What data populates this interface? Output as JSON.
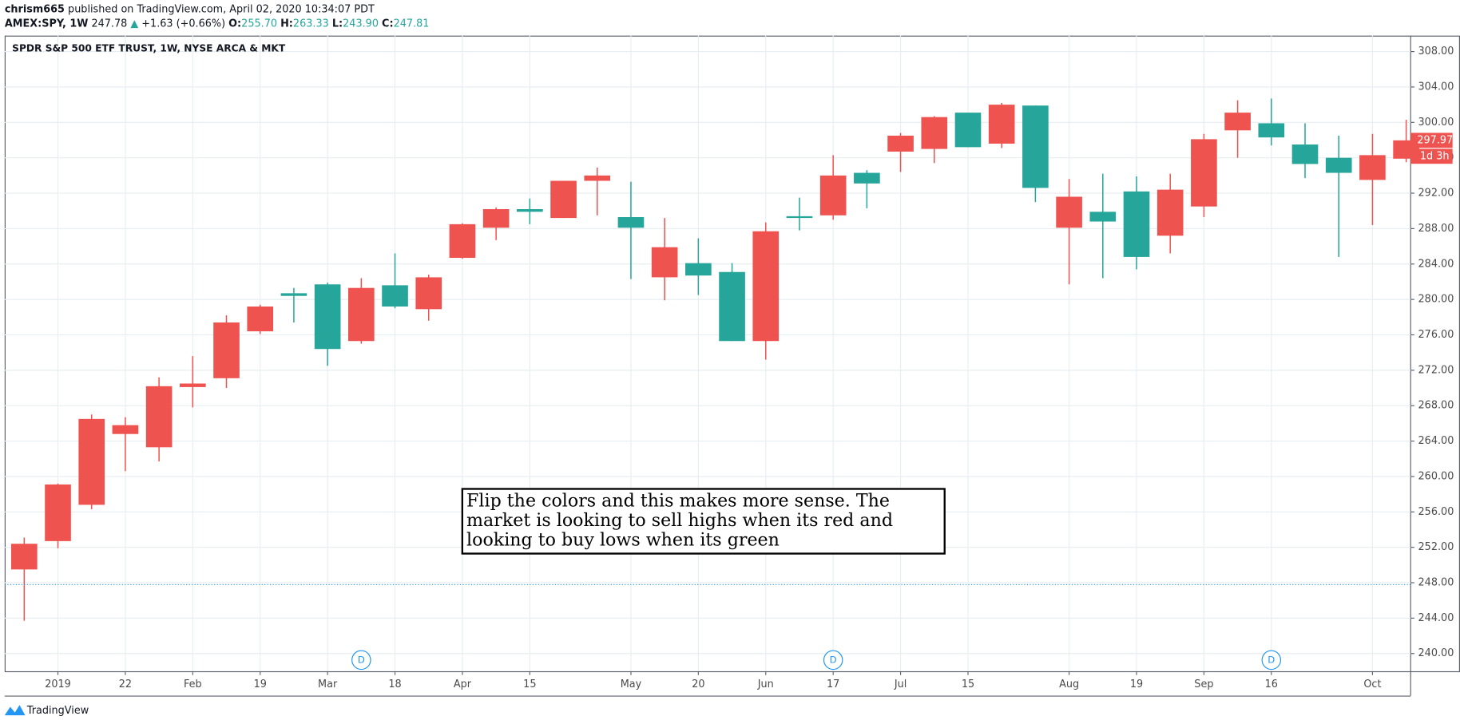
{
  "header": {
    "author": "chrism665",
    "published": "published on TradingView.com, April 02, 2020 10:34:07 PDT",
    "symbol": "AMEX:SPY, 1W",
    "price": "247.78",
    "arrow": "▲",
    "change": "+1.63 (+0.66%)",
    "ohlc": [
      {
        "label": "O:",
        "value": "255.70"
      },
      {
        "label": "H:",
        "value": "263.33"
      },
      {
        "label": "L:",
        "value": "243.90"
      },
      {
        "label": "C:",
        "value": "247.81"
      }
    ]
  },
  "chart_data": {
    "type": "candlestick",
    "title": "SPDR S&P 500 ETF TRUST, 1W, NYSE ARCA & MKT",
    "categories": [
      null,
      "2019",
      null,
      "22",
      null,
      "Feb",
      null,
      "19",
      null,
      "Mar",
      null,
      "18",
      null,
      "Apr",
      null,
      "15",
      null,
      null,
      "May",
      null,
      "20",
      null,
      "Jun",
      null,
      "17",
      null,
      "Jul",
      null,
      "15",
      null,
      null,
      "Aug",
      null,
      "19",
      null,
      "Sep",
      null,
      "16",
      null,
      null,
      "Oct",
      null
    ],
    "open": [
      249.5,
      252.7,
      256.8,
      264.8,
      263.3,
      270.1,
      271.1,
      276.4,
      280.7,
      281.7,
      275.3,
      281.6,
      278.9,
      284.7,
      288.1,
      290.2,
      289.2,
      293.4,
      289.3,
      282.5,
      284.1,
      283.1,
      275.3,
      289.4,
      289.5,
      294.3,
      296.7,
      297.0,
      301.1,
      297.6,
      301.9,
      288.1,
      289.9,
      292.2,
      287.2,
      290.5,
      299.1,
      299.9,
      297.5,
      296.0,
      293.5,
      295.9
    ],
    "high": [
      253.1,
      259.2,
      267.0,
      266.7,
      271.2,
      273.6,
      278.2,
      279.4,
      281.3,
      281.9,
      282.4,
      285.2,
      282.8,
      288.6,
      290.4,
      291.4,
      293.4,
      294.9,
      293.3,
      289.2,
      286.9,
      284.1,
      288.7,
      291.5,
      296.3,
      294.6,
      298.8,
      300.7,
      301.1,
      302.2,
      301.9,
      293.6,
      294.2,
      293.9,
      294.2,
      298.7,
      302.5,
      302.7,
      299.9,
      298.5,
      298.7,
      300.3
    ],
    "low": [
      243.7,
      251.9,
      256.3,
      260.6,
      261.7,
      267.8,
      270.0,
      276.1,
      277.4,
      272.5,
      275.0,
      279.0,
      277.6,
      284.6,
      286.7,
      288.5,
      289.2,
      289.5,
      282.3,
      279.9,
      280.5,
      275.3,
      273.2,
      287.8,
      289.0,
      290.3,
      294.4,
      295.4,
      297.2,
      297.1,
      291.0,
      281.7,
      282.4,
      283.4,
      285.2,
      289.3,
      296.0,
      297.4,
      293.7,
      284.8,
      288.4,
      295.5
    ],
    "close": [
      252.4,
      259.1,
      266.5,
      265.8,
      270.2,
      270.5,
      277.4,
      279.2,
      280.4,
      274.4,
      281.3,
      279.2,
      282.5,
      288.5,
      290.2,
      289.9,
      293.4,
      294.0,
      288.1,
      285.9,
      282.7,
      275.3,
      287.7,
      289.2,
      294.0,
      293.1,
      298.5,
      300.6,
      297.2,
      302.0,
      292.6,
      291.6,
      288.8,
      284.8,
      292.4,
      298.1,
      301.1,
      298.3,
      295.3,
      294.3,
      296.3,
      297.97
    ],
    "up_color": "#ef5350",
    "down_color": "#26a69a",
    "ylim": [
      238.0,
      309.8
    ],
    "yticks": [
      {
        "value": 240,
        "label": "240.00"
      },
      {
        "value": 244,
        "label": "244.00"
      },
      {
        "value": 248,
        "label": "248.00"
      },
      {
        "value": 252,
        "label": "252.00"
      },
      {
        "value": 256,
        "label": "256.00"
      },
      {
        "value": 260,
        "label": "260.00"
      },
      {
        "value": 264,
        "label": "264.00"
      },
      {
        "value": 268,
        "label": "268.00"
      },
      {
        "value": 272,
        "label": "272.00"
      },
      {
        "value": 276,
        "label": "276.00"
      },
      {
        "value": 280,
        "label": "280.00"
      },
      {
        "value": 284,
        "label": "284.00"
      },
      {
        "value": 288,
        "label": "288.00"
      },
      {
        "value": 292,
        "label": "292.00"
      },
      {
        "value": 296,
        "label": "296.00"
      },
      {
        "value": 300,
        "label": "300.00"
      },
      {
        "value": 304,
        "label": "304.00"
      },
      {
        "value": 308,
        "label": "308.00"
      }
    ],
    "grid": true,
    "price_line": 247.78,
    "countdown": "1d 3h",
    "dividend_markers": {
      "label": "D",
      "at": [
        10,
        24,
        37
      ]
    },
    "annotation": [
      "Flip the colors and this makes more sense. The",
      "market is looking to sell highs when its red and",
      "looking to buy lows when its green"
    ]
  },
  "footer": {
    "brand": "TradingView"
  }
}
